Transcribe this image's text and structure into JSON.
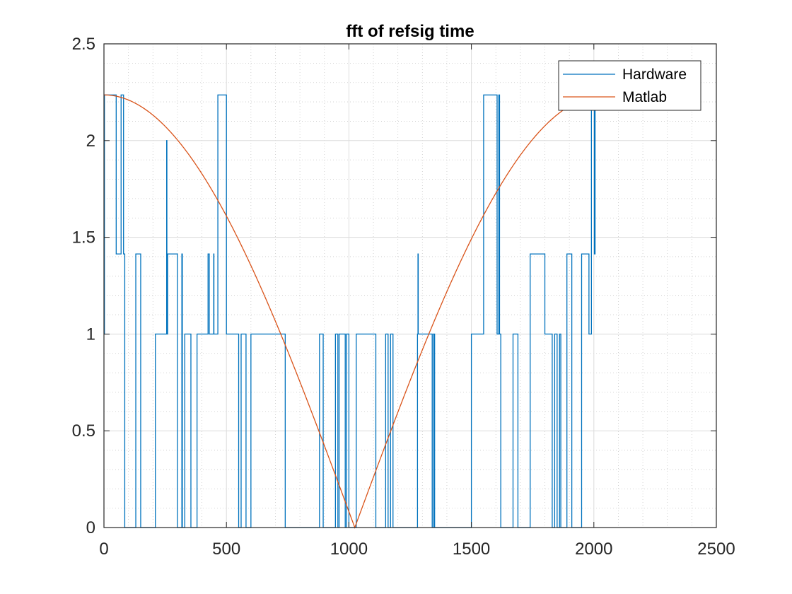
{
  "chart_data": {
    "type": "line",
    "title": "fft of refsig time",
    "xlabel": "",
    "ylabel": "",
    "xlim": [
      0,
      2500
    ],
    "ylim": [
      0,
      2.5
    ],
    "xticks": [
      0,
      500,
      1000,
      1500,
      2000,
      2500
    ],
    "yticks": [
      0,
      0.5,
      1,
      1.5,
      2,
      2.5
    ],
    "xtick_labels": [
      "0",
      "500",
      "1000",
      "1500",
      "2000",
      "2500"
    ],
    "ytick_labels": [
      "0",
      "0.5",
      "1",
      "1.5",
      "2",
      "2.5"
    ],
    "grid": true,
    "minor_grid": true,
    "legend_position": "top-right",
    "series": [
      {
        "name": "Hardware",
        "color": "#0072BD",
        "step": true,
        "x": [
          0,
          2,
          40,
          50,
          65,
          70,
          80,
          85,
          130,
          150,
          210,
          250,
          256,
          257,
          260,
          300,
          310,
          318,
          320,
          325,
          330,
          355,
          360,
          380,
          405,
          425,
          430,
          448,
          449,
          450,
          465,
          470,
          500,
          510,
          550,
          560,
          575,
          580,
          585,
          600,
          720,
          740,
          770,
          790,
          880,
          895,
          905,
          945,
          955,
          960,
          965,
          985,
          990,
          1000,
          1020,
          1025,
          1030,
          1110,
          1120,
          1150,
          1160,
          1170,
          1180,
          1200,
          1280,
          1282,
          1283,
          1290,
          1330,
          1340,
          1345,
          1350,
          1360,
          1400,
          1500,
          1510,
          1550,
          1590,
          1605,
          1610,
          1612,
          1615,
          1620,
          1650,
          1670,
          1690,
          1700,
          1740,
          1780,
          1800,
          1830,
          1840,
          1850,
          1860,
          1865,
          1870,
          1880,
          1890,
          1910,
          1930,
          1950,
          1960,
          1980,
          1990,
          2000,
          2002,
          2005
        ],
        "y": [
          1,
          2.236,
          2.236,
          1.414,
          1.414,
          2.236,
          1.414,
          0,
          1.414,
          0,
          1,
          1,
          2,
          1,
          1.414,
          0,
          0,
          1.414,
          0,
          0,
          1,
          0,
          0,
          1,
          1,
          1.414,
          1,
          1.414,
          1,
          1,
          2.236,
          2.236,
          1,
          1,
          0,
          1,
          1,
          0,
          0,
          1,
          1,
          0,
          0,
          0,
          1,
          0,
          0,
          1,
          0,
          1,
          1,
          0,
          1,
          0,
          0,
          0,
          1,
          0,
          0,
          1,
          0,
          1,
          0,
          0,
          1,
          1.414,
          1,
          1,
          1,
          0,
          1,
          0,
          0,
          0,
          1,
          1,
          2.236,
          2.236,
          1,
          1,
          2.236,
          1,
          0,
          0,
          1,
          0,
          0,
          1.414,
          1.414,
          1,
          0,
          1,
          0,
          1,
          0,
          0,
          0,
          1.414,
          0,
          0,
          1.414,
          1.414,
          1,
          2.236,
          2.236,
          1.414,
          2.236
        ]
      },
      {
        "name": "Matlab",
        "color": "#D95319",
        "function": "2.236*|cos(pi*x/2048)|",
        "x_range": [
          0,
          2048
        ]
      }
    ]
  }
}
